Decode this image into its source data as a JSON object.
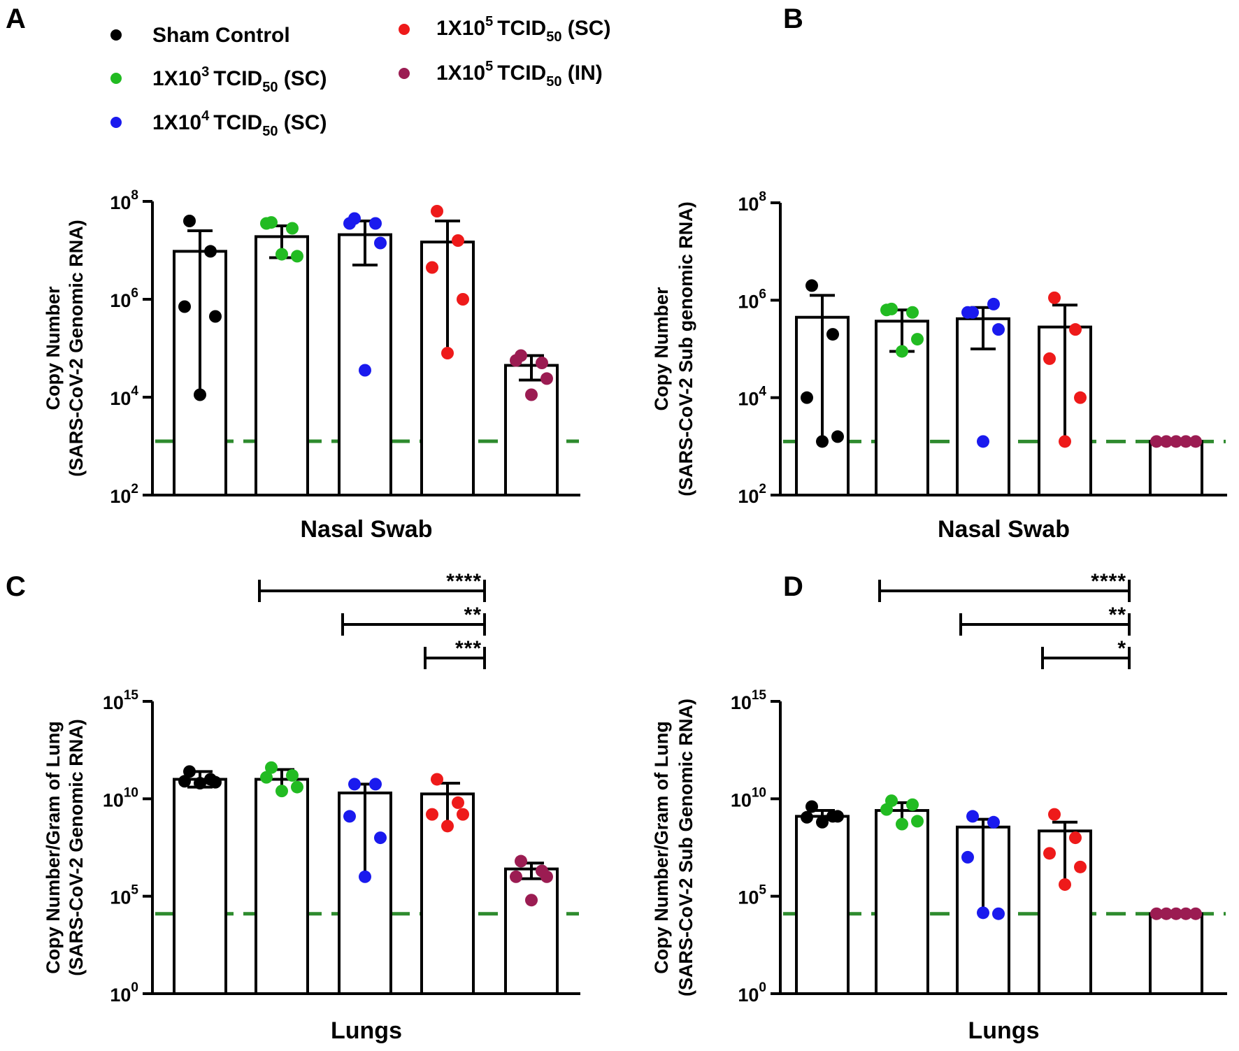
{
  "legend": {
    "entries": [
      {
        "key": "sham",
        "label": "Sham Control",
        "color": "#000000"
      },
      {
        "key": "sc3",
        "base": "1X10",
        "exp": "3",
        "tcid": "TCID",
        "sub": "50",
        "route": " (SC)",
        "color": "#22bb22"
      },
      {
        "key": "sc4",
        "base": "1X10",
        "exp": "4",
        "tcid": "TCID",
        "sub": "50",
        "route": " (SC)",
        "color": "#1a1aee"
      },
      {
        "key": "sc5",
        "base": "1X10",
        "exp": "5",
        "tcid": "TCID",
        "sub": "50",
        "route": " (SC)",
        "color": "#ee1a1a"
      },
      {
        "key": "in5",
        "base": "1X10",
        "exp": "5",
        "tcid": "TCID",
        "sub": "50",
        "route": " (IN)",
        "color": "#9b1c52"
      }
    ]
  },
  "threshold_color": "#2e8b2e",
  "chart_data": [
    {
      "panel": "A",
      "type": "bar",
      "scale": "log10",
      "xlabel": "Nasal Swab",
      "ylabel_line1": "Copy Number",
      "ylabel_line2": "(SARS-CoV-2 Genomic RNA)",
      "ylim_exp": [
        2,
        8
      ],
      "ticks": [
        {
          "base": "10",
          "exp": "2",
          "value_exp": 2
        },
        {
          "base": "10",
          "exp": "4",
          "value_exp": 4
        },
        {
          "base": "10",
          "exp": "6",
          "value_exp": 6
        },
        {
          "base": "10",
          "exp": "8",
          "value_exp": 8
        }
      ],
      "threshold_exp": 3.1,
      "groups": [
        {
          "name": "Sham Control",
          "mean_exp": 6.98,
          "err_hi_exp": 7.4,
          "err_lo_exp": null,
          "points_exp": [
            7.6,
            6.98,
            5.85,
            5.65,
            4.05
          ]
        },
        {
          "name": "1X10^3 TCID50 (SC)",
          "mean_exp": 7.28,
          "err_hi_exp": 7.5,
          "err_lo_exp": 6.85,
          "points_exp": [
            7.57,
            7.45,
            7.55,
            6.88,
            6.92
          ]
        },
        {
          "name": "1X10^4 TCID50 (SC)",
          "mean_exp": 7.32,
          "err_hi_exp": 7.6,
          "err_lo_exp": 6.7,
          "points_exp": [
            7.65,
            7.55,
            7.55,
            7.15,
            4.55
          ]
        },
        {
          "name": "1X10^5 TCID50 (SC)",
          "mean_exp": 7.17,
          "err_hi_exp": 7.6,
          "err_lo_exp": null,
          "points_exp": [
            7.8,
            7.2,
            6.65,
            6.0,
            4.9
          ]
        },
        {
          "name": "1X10^5 TCID50 (IN)",
          "mean_exp": 4.65,
          "err_hi_exp": 4.85,
          "err_lo_exp": 4.35,
          "points_exp": [
            4.85,
            4.7,
            4.75,
            4.38,
            4.05
          ]
        }
      ],
      "sig": []
    },
    {
      "panel": "B",
      "type": "bar",
      "scale": "log10",
      "xlabel": "Nasal Swab",
      "ylabel_line1": "Copy Number",
      "ylabel_line2": "(SARS-CoV-2 Sub genomic RNA)",
      "ylim_exp": [
        2,
        8
      ],
      "ticks": [
        {
          "base": "10",
          "exp": "2",
          "value_exp": 2
        },
        {
          "base": "10",
          "exp": "4",
          "value_exp": 4
        },
        {
          "base": "10",
          "exp": "6",
          "value_exp": 6
        },
        {
          "base": "10",
          "exp": "8",
          "value_exp": 8
        }
      ],
      "threshold_exp": 3.1,
      "groups": [
        {
          "name": "Sham Control",
          "mean_exp": 5.65,
          "err_hi_exp": 6.1,
          "err_lo_exp": null,
          "points_exp": [
            6.3,
            5.3,
            4.0,
            3.2,
            3.1
          ]
        },
        {
          "name": "1X10^3 TCID50 (SC)",
          "mean_exp": 5.57,
          "err_hi_exp": 5.8,
          "err_lo_exp": 4.95,
          "points_exp": [
            5.82,
            5.75,
            5.8,
            5.2,
            4.95
          ]
        },
        {
          "name": "1X10^4 TCID50 (SC)",
          "mean_exp": 5.62,
          "err_hi_exp": 5.85,
          "err_lo_exp": 5.0,
          "points_exp": [
            5.75,
            5.92,
            5.75,
            5.4,
            3.1
          ]
        },
        {
          "name": "1X10^5 TCID50 (SC)",
          "mean_exp": 5.45,
          "err_hi_exp": 5.9,
          "err_lo_exp": null,
          "points_exp": [
            6.05,
            5.4,
            4.8,
            4.0,
            3.1
          ]
        },
        {
          "name": "1X10^5 TCID50 (IN)",
          "mean_exp": 3.1,
          "err_hi_exp": null,
          "err_lo_exp": null,
          "points_exp": [
            3.1,
            3.1,
            3.1,
            3.1,
            3.1
          ]
        }
      ],
      "sig": []
    },
    {
      "panel": "C",
      "type": "bar",
      "scale": "log10",
      "xlabel": "Lungs",
      "ylabel_line1": "Copy Number/Gram of Lung",
      "ylabel_line2": "(SARS-CoV-2 Genomic RNA)",
      "ylim_exp": [
        0,
        15
      ],
      "ticks": [
        {
          "base": "10",
          "exp": "0",
          "value_exp": 0
        },
        {
          "base": "10",
          "exp": "5",
          "value_exp": 5
        },
        {
          "base": "10",
          "exp": "10",
          "value_exp": 10
        },
        {
          "base": "10",
          "exp": "15",
          "value_exp": 15
        }
      ],
      "threshold_exp": 4.1,
      "groups": [
        {
          "name": "Sham Control",
          "mean_exp": 11.0,
          "err_hi_exp": 11.4,
          "err_lo_exp": 10.6,
          "points_exp": [
            11.4,
            11.0,
            10.9,
            10.85,
            10.8
          ]
        },
        {
          "name": "1X10^3 TCID50 (SC)",
          "mean_exp": 11.0,
          "err_hi_exp": 11.5,
          "err_lo_exp": null,
          "points_exp": [
            11.6,
            11.2,
            11.1,
            10.6,
            10.4
          ]
        },
        {
          "name": "1X10^4 TCID50 (SC)",
          "mean_exp": 10.3,
          "err_hi_exp": 10.75,
          "err_lo_exp": null,
          "points_exp": [
            10.75,
            10.75,
            9.1,
            8.0,
            6.0
          ]
        },
        {
          "name": "1X10^5 TCID50 (SC)",
          "mean_exp": 10.25,
          "err_hi_exp": 10.8,
          "err_lo_exp": null,
          "points_exp": [
            11.0,
            9.8,
            9.2,
            9.2,
            8.6
          ]
        },
        {
          "name": "1X10^5 TCID50 (IN)",
          "mean_exp": 6.4,
          "err_hi_exp": 6.7,
          "err_lo_exp": 5.9,
          "points_exp": [
            6.8,
            6.3,
            6.0,
            6.0,
            4.8
          ]
        }
      ],
      "sig": [
        {
          "from": 1,
          "to": 4,
          "stars": "****"
        },
        {
          "from": 2,
          "to": 4,
          "stars": "**"
        },
        {
          "from": 3,
          "to": 4,
          "stars": "***"
        }
      ]
    },
    {
      "panel": "D",
      "type": "bar",
      "scale": "log10",
      "xlabel": "Lungs",
      "ylabel_line1": "Copy Number/Gram of Lung",
      "ylabel_line2": "(SARS-CoV-2 Sub Genomic RNA)",
      "ylim_exp": [
        0,
        15
      ],
      "ticks": [
        {
          "base": "10",
          "exp": "0",
          "value_exp": 0
        },
        {
          "base": "10",
          "exp": "5",
          "value_exp": 5
        },
        {
          "base": "10",
          "exp": "10",
          "value_exp": 10
        },
        {
          "base": "10",
          "exp": "15",
          "value_exp": 15
        }
      ],
      "threshold_exp": 4.1,
      "groups": [
        {
          "name": "Sham Control",
          "mean_exp": 9.1,
          "err_hi_exp": 9.4,
          "err_lo_exp": null,
          "points_exp": [
            9.6,
            9.1,
            9.05,
            9.1,
            8.8
          ]
        },
        {
          "name": "1X10^3 TCID50 (SC)",
          "mean_exp": 9.4,
          "err_hi_exp": 9.8,
          "err_lo_exp": null,
          "points_exp": [
            9.9,
            9.7,
            9.45,
            8.85,
            8.7
          ]
        },
        {
          "name": "1X10^4 TCID50 (SC)",
          "mean_exp": 8.55,
          "err_hi_exp": 8.95,
          "err_lo_exp": null,
          "points_exp": [
            9.1,
            8.8,
            7.0,
            4.1,
            4.15
          ]
        },
        {
          "name": "1X10^5 TCID50 (SC)",
          "mean_exp": 8.35,
          "err_hi_exp": 8.8,
          "err_lo_exp": null,
          "points_exp": [
            9.2,
            8.0,
            7.2,
            6.5,
            5.6
          ]
        },
        {
          "name": "1X10^5 TCID50 (IN)",
          "mean_exp": 4.1,
          "err_hi_exp": null,
          "err_lo_exp": null,
          "points_exp": [
            4.1,
            4.1,
            4.1,
            4.1,
            4.1
          ]
        }
      ],
      "sig": [
        {
          "from": 1,
          "to": 4,
          "stars": "****"
        },
        {
          "from": 2,
          "to": 4,
          "stars": "**"
        },
        {
          "from": 3,
          "to": 4,
          "stars": "*"
        }
      ]
    }
  ]
}
